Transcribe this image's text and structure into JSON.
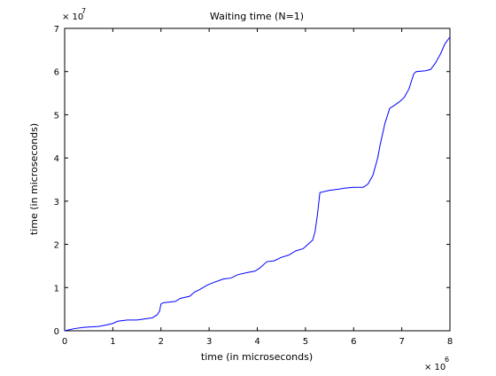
{
  "chart_data": {
    "type": "line",
    "title": "Waiting time (N=1)",
    "xlabel": "time (in microseconds)",
    "ylabel": "time (in microseconds)",
    "x_multiplier_base": "× 10",
    "x_multiplier_exp": "6",
    "y_multiplier_base": "× 10",
    "y_multiplier_exp": "7",
    "xlim": [
      0,
      8
    ],
    "ylim": [
      0,
      7
    ],
    "x_ticks": [
      "0",
      "1",
      "2",
      "3",
      "4",
      "5",
      "6",
      "7",
      "8"
    ],
    "y_ticks": [
      "0",
      "1",
      "2",
      "3",
      "4",
      "5",
      "6",
      "7"
    ],
    "grid": false,
    "line_color": "#0000ff",
    "series": [
      {
        "x": [
          0,
          0.2,
          0.4,
          0.7,
          0.85,
          1.0,
          1.1,
          1.3,
          1.5,
          1.7,
          1.82,
          1.92,
          1.97,
          2.0,
          2.05,
          2.3,
          2.4,
          2.6,
          2.7,
          2.8,
          2.95,
          3.05,
          3.3,
          3.45,
          3.6,
          3.8,
          3.95,
          4.05,
          4.2,
          4.35,
          4.5,
          4.65,
          4.8,
          4.95,
          5.05,
          5.15,
          5.2,
          5.25,
          5.3,
          5.5,
          5.7,
          5.8,
          6.0,
          6.2,
          6.3,
          6.4,
          6.5,
          6.55,
          6.65,
          6.75,
          6.85,
          6.95,
          7.05,
          7.15,
          7.25,
          7.3,
          7.5,
          7.6,
          7.7,
          7.8,
          7.9,
          8.0
        ],
        "y": [
          0,
          0.05,
          0.08,
          0.1,
          0.13,
          0.17,
          0.22,
          0.25,
          0.25,
          0.28,
          0.3,
          0.37,
          0.45,
          0.62,
          0.65,
          0.68,
          0.75,
          0.8,
          0.9,
          0.95,
          1.05,
          1.1,
          1.2,
          1.22,
          1.3,
          1.35,
          1.38,
          1.45,
          1.6,
          1.62,
          1.7,
          1.75,
          1.85,
          1.9,
          2.0,
          2.1,
          2.3,
          2.7,
          3.2,
          3.25,
          3.28,
          3.3,
          3.32,
          3.32,
          3.4,
          3.6,
          4.0,
          4.3,
          4.8,
          5.15,
          5.22,
          5.3,
          5.4,
          5.6,
          5.95,
          6.0,
          6.02,
          6.05,
          6.2,
          6.4,
          6.65,
          6.8
        ]
      }
    ]
  }
}
